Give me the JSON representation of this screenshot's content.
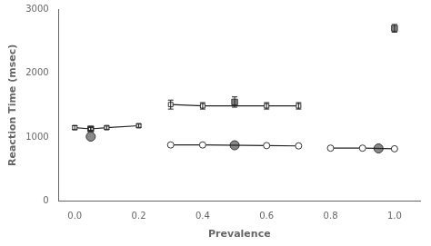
{
  "chart_data": {
    "type": "line",
    "xlabel": "Prevalence",
    "ylabel": "Reaction Time (msec)",
    "xlim": [
      -0.05,
      1.08
    ],
    "ylim": [
      0,
      3000
    ],
    "xticks": [
      {
        "value": 0,
        "label": "0.0"
      },
      0.2,
      0.4,
      0.6,
      0.8,
      {
        "value": 1.0,
        "label": "1.0"
      }
    ],
    "yticks": [
      0,
      1000,
      2000,
      3000
    ],
    "grid": false,
    "series": [
      {
        "x": [
          0.0,
          0.05,
          0.1,
          0.2
        ],
        "values": [
          1150,
          1130,
          1150,
          1180
        ],
        "errors": [
          30,
          25,
          25,
          25
        ],
        "marker": "square",
        "line_style": "solid",
        "color": "#ffffff"
      },
      {
        "x": [
          0.3,
          0.4,
          0.6,
          0.7
        ],
        "values": [
          1510,
          1490,
          1490,
          1490
        ],
        "errors": [
          70,
          50,
          50,
          50
        ],
        "marker": "square",
        "line_style": "solid",
        "color": "#ffffff"
      },
      {
        "x": [
          0.05,
          0.5,
          1.0
        ],
        "values": [
          1130,
          1550,
          2700
        ],
        "errors": [
          25,
          80,
          60
        ],
        "marker": "square",
        "line_style": "none",
        "color": "#888888"
      },
      {
        "x": [
          0.3,
          0.4,
          0.6,
          0.7
        ],
        "values": [
          880,
          880,
          870,
          865
        ],
        "marker": "circle",
        "line_style": "solid",
        "color": "#ffffff"
      },
      {
        "x": [
          0.8,
          0.9,
          1.0
        ],
        "values": [
          830,
          830,
          820
        ],
        "marker": "circle",
        "line_style": "solid",
        "color": "#ffffff"
      },
      {
        "x": [
          0.05,
          0.5,
          0.95
        ],
        "values": [
          1010,
          875,
          825
        ],
        "marker": "circle",
        "line_style": "none",
        "color": "#888888"
      }
    ]
  }
}
